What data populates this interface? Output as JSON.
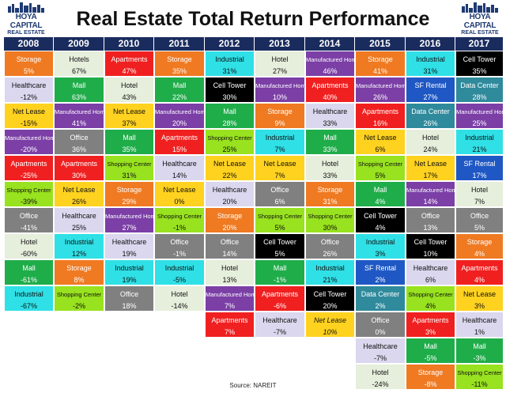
{
  "header": {
    "title": "Real Estate Total Return Performance",
    "logo_text": "HOYA CAPITAL",
    "logo_sub": "REAL ESTATE"
  },
  "source": "Source: NAREIT",
  "colors": {
    "Storage": "#ef7a22",
    "Hotels": "#e6eedc",
    "Hotel": "#e6eedc",
    "Apartments": "#f02020",
    "Industrial": "#2fe0e6",
    "Manufactured Home": "#7b3fa6",
    "Cell Tower": "#000000",
    "Healthcare": "#dad7ee",
    "Mall": "#1fad4a",
    "SF Rental": "#1f58c4",
    "Data Center": "#2f8a9c",
    "Net Lease": "#ffd21f",
    "Office": "#808080",
    "Shopping Center": "#98e21f"
  },
  "chart_data": {
    "type": "table",
    "title": "Real Estate Total Return Performance",
    "columns": [
      "2008",
      "2009",
      "2010",
      "2011",
      "2012",
      "2013",
      "2014",
      "2015",
      "2016",
      "2017"
    ],
    "rows": [
      [
        {
          "name": "Storage",
          "ret": "5%"
        },
        {
          "name": "Healthcare",
          "ret": "-12%"
        },
        {
          "name": "Net Lease",
          "ret": "-15%"
        },
        {
          "name": "Manufactured Home",
          "ret": "-20%"
        },
        {
          "name": "Apartments",
          "ret": "-25%"
        },
        {
          "name": "Shopping Center",
          "ret": "-39%"
        },
        {
          "name": "Office",
          "ret": "-41%"
        },
        {
          "name": "Hotel",
          "ret": "-60%"
        },
        {
          "name": "Mall",
          "ret": "-61%"
        },
        {
          "name": "Industrial",
          "ret": "-67%"
        }
      ],
      [
        {
          "name": "Hotels",
          "ret": "67%"
        },
        {
          "name": "Mall",
          "ret": "63%"
        },
        {
          "name": "Manufactured Home",
          "ret": "41%"
        },
        {
          "name": "Office",
          "ret": "36%"
        },
        {
          "name": "Apartments",
          "ret": "30%"
        },
        {
          "name": "Net Lease",
          "ret": "26%"
        },
        {
          "name": "Healthcare",
          "ret": "25%"
        },
        {
          "name": "Industrial",
          "ret": "12%"
        },
        {
          "name": "Storage",
          "ret": "8%"
        },
        {
          "name": "Shopping Center",
          "ret": "-2%"
        }
      ],
      [
        {
          "name": "Apartments",
          "ret": "47%"
        },
        {
          "name": "Hotel",
          "ret": "43%"
        },
        {
          "name": "Net Lease",
          "ret": "37%"
        },
        {
          "name": "Mall",
          "ret": "35%"
        },
        {
          "name": "Shopping Center",
          "ret": "31%"
        },
        {
          "name": "Storage",
          "ret": "29%"
        },
        {
          "name": "Manufactured Home",
          "ret": "27%"
        },
        {
          "name": "Healthcare",
          "ret": "19%"
        },
        {
          "name": "Industrial",
          "ret": "19%"
        },
        {
          "name": "Office",
          "ret": "18%"
        }
      ],
      [
        {
          "name": "Storage",
          "ret": "35%"
        },
        {
          "name": "Mall",
          "ret": "22%"
        },
        {
          "name": "Manufactured Home",
          "ret": "20%"
        },
        {
          "name": "Apartments",
          "ret": "15%"
        },
        {
          "name": "Healthcare",
          "ret": "14%"
        },
        {
          "name": "Net Lease",
          "ret": "0%"
        },
        {
          "name": "Shopping Center",
          "ret": "-1%"
        },
        {
          "name": "Office",
          "ret": "-1%"
        },
        {
          "name": "Industrial",
          "ret": "-5%"
        },
        {
          "name": "Hotel",
          "ret": "-14%"
        }
      ],
      [
        {
          "name": "Industrial",
          "ret": "31%"
        },
        {
          "name": "Cell Tower",
          "ret": "30%"
        },
        {
          "name": "Mall",
          "ret": "28%"
        },
        {
          "name": "Shopping Center",
          "ret": "25%"
        },
        {
          "name": "Net Lease",
          "ret": "22%"
        },
        {
          "name": "Healthcare",
          "ret": "20%"
        },
        {
          "name": "Storage",
          "ret": "20%"
        },
        {
          "name": "Office",
          "ret": "14%"
        },
        {
          "name": "Hotel",
          "ret": "13%"
        },
        {
          "name": "Manufactured Home",
          "ret": "7%"
        },
        {
          "name": "Apartments",
          "ret": "7%"
        }
      ],
      [
        {
          "name": "Hotel",
          "ret": "27%"
        },
        {
          "name": "Manufactured Home",
          "ret": "10%"
        },
        {
          "name": "Storage",
          "ret": "9%"
        },
        {
          "name": "Industrial",
          "ret": "7%"
        },
        {
          "name": "Net Lease",
          "ret": "7%"
        },
        {
          "name": "Office",
          "ret": "6%"
        },
        {
          "name": "Shopping Center",
          "ret": "5%"
        },
        {
          "name": "Cell Tower",
          "ret": "5%"
        },
        {
          "name": "Mall",
          "ret": "-1%"
        },
        {
          "name": "Apartments",
          "ret": "-6%"
        },
        {
          "name": "Healthcare",
          "ret": "-7%"
        }
      ],
      [
        {
          "name": "Manufactured Home",
          "ret": "46%"
        },
        {
          "name": "Apartments",
          "ret": "40%"
        },
        {
          "name": "Healthcare",
          "ret": "33%"
        },
        {
          "name": "Mall",
          "ret": "33%"
        },
        {
          "name": "Hotel",
          "ret": "33%"
        },
        {
          "name": "Storage",
          "ret": "31%"
        },
        {
          "name": "Shopping Center",
          "ret": "30%"
        },
        {
          "name": "Office",
          "ret": "26%"
        },
        {
          "name": "Industrial",
          "ret": "21%"
        },
        {
          "name": "Cell Tower",
          "ret": "20%"
        },
        {
          "name": "Net Lease",
          "ret": "10%",
          "italic": true
        }
      ],
      [
        {
          "name": "Storage",
          "ret": "41%"
        },
        {
          "name": "Manufactured Home",
          "ret": "26%"
        },
        {
          "name": "Apartments",
          "ret": "16%"
        },
        {
          "name": "Net Lease",
          "ret": "6%"
        },
        {
          "name": "Shopping Center",
          "ret": "5%"
        },
        {
          "name": "Mall",
          "ret": "4%"
        },
        {
          "name": "Cell Tower",
          "ret": "4%"
        },
        {
          "name": "Industrial",
          "ret": "3%"
        },
        {
          "name": "SF Rental",
          "ret": "2%"
        },
        {
          "name": "Data Center",
          "ret": "2%"
        },
        {
          "name": "Office",
          "ret": "0%"
        },
        {
          "name": "Healthcare",
          "ret": "-7%"
        },
        {
          "name": "Hotel",
          "ret": "-24%"
        }
      ],
      [
        {
          "name": "Industrial",
          "ret": "31%"
        },
        {
          "name": "SF Rental",
          "ret": "27%"
        },
        {
          "name": "Data Center",
          "ret": "26%"
        },
        {
          "name": "Hotel",
          "ret": "24%"
        },
        {
          "name": "Net Lease",
          "ret": "17%"
        },
        {
          "name": "Manufactured Home",
          "ret": "14%"
        },
        {
          "name": "Office",
          "ret": "13%"
        },
        {
          "name": "Cell Tower",
          "ret": "10%"
        },
        {
          "name": "Healthcare",
          "ret": "6%"
        },
        {
          "name": "Shopping Center",
          "ret": "4%"
        },
        {
          "name": "Apartments",
          "ret": "3%"
        },
        {
          "name": "Mall",
          "ret": "-5%"
        },
        {
          "name": "Storage",
          "ret": "-8%"
        }
      ],
      [
        {
          "name": "Cell Tower",
          "ret": "35%"
        },
        {
          "name": "Data Center",
          "ret": "28%"
        },
        {
          "name": "Manufactured Home",
          "ret": "25%"
        },
        {
          "name": "Industrial",
          "ret": "21%"
        },
        {
          "name": "SF Rental",
          "ret": "17%"
        },
        {
          "name": "Hotel",
          "ret": "7%"
        },
        {
          "name": "Office",
          "ret": "5%"
        },
        {
          "name": "Storage",
          "ret": "4%"
        },
        {
          "name": "Apartments",
          "ret": "4%"
        },
        {
          "name": "Net Lease",
          "ret": "3%"
        },
        {
          "name": "Healthcare",
          "ret": "1%"
        },
        {
          "name": "Mall",
          "ret": "-3%"
        },
        {
          "name": "Shopping Center",
          "ret": "-11%"
        }
      ]
    ]
  }
}
